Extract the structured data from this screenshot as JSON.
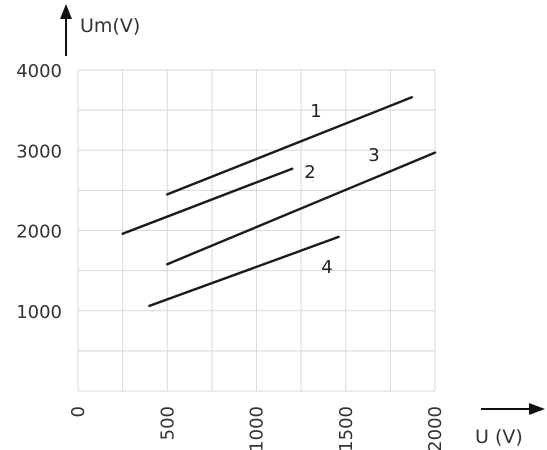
{
  "chart_data": {
    "type": "line",
    "ylabel": "Um(V)",
    "xlabel": "U (V)",
    "xlim": [
      0,
      2000
    ],
    "ylim": [
      0,
      4000
    ],
    "x_ticks": [
      "0",
      "500",
      "1000",
      "1500",
      "2000"
    ],
    "y_ticks": [
      "1000",
      "2000",
      "3000",
      "4000"
    ],
    "grid": true,
    "series": [
      {
        "name": "1",
        "points": [
          [
            500,
            2450
          ],
          [
            1870,
            3660
          ]
        ]
      },
      {
        "name": "2",
        "points": [
          [
            250,
            1960
          ],
          [
            1200,
            2770
          ]
        ]
      },
      {
        "name": "3",
        "points": [
          [
            500,
            1580
          ],
          [
            2000,
            2970
          ]
        ]
      },
      {
        "name": "4",
        "points": [
          [
            400,
            1060
          ],
          [
            1460,
            1920
          ]
        ]
      }
    ]
  }
}
